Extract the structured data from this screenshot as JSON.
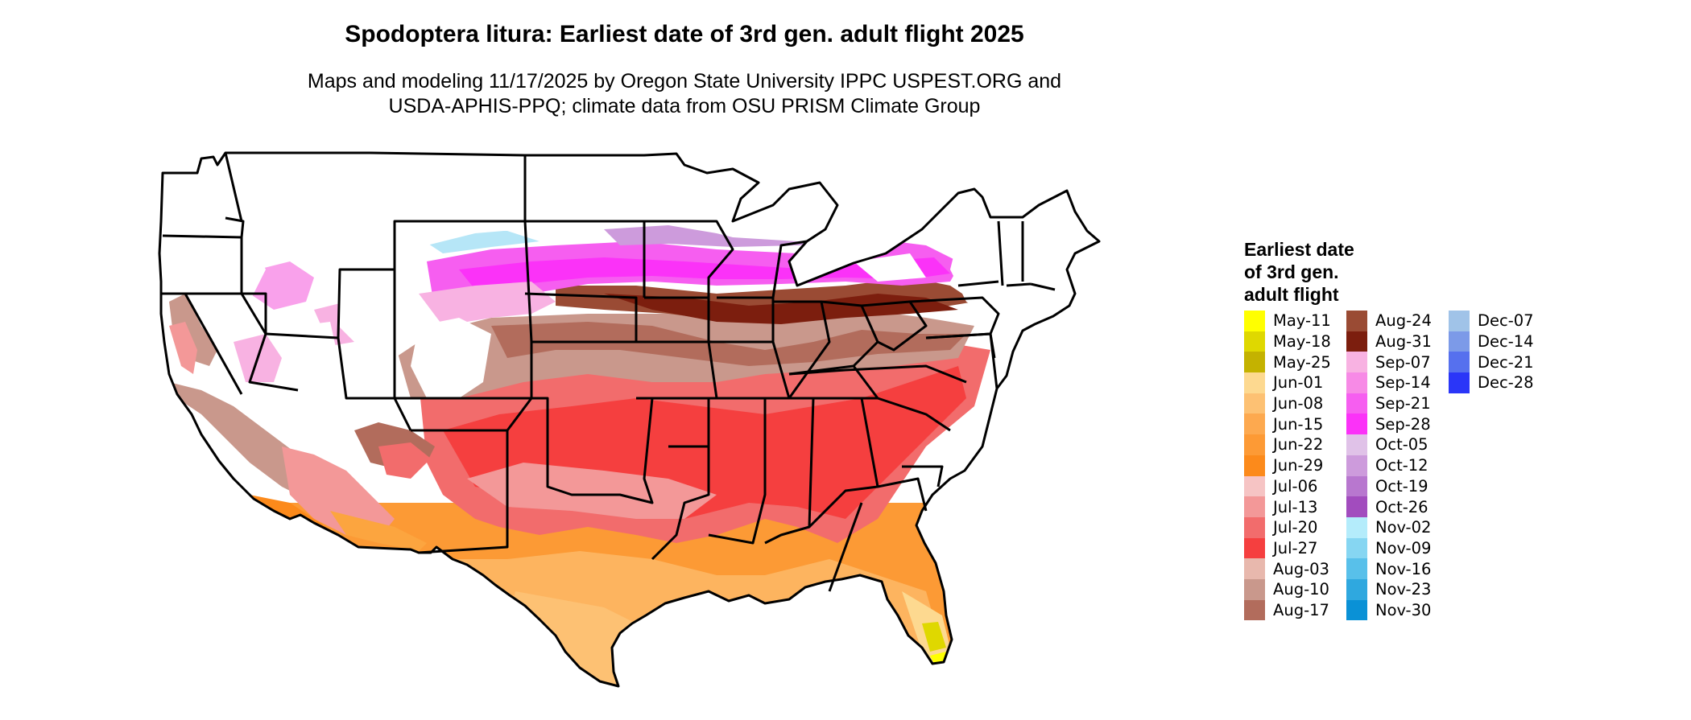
{
  "title": "Spodoptera litura: Earliest date of 3rd gen. adult flight 2025",
  "subtitle_line1": "Maps and modeling 11/17/2025 by Oregon State University IPPC USPEST.ORG and",
  "subtitle_line2": "USDA-APHIS-PPQ; climate data from OSU PRISM Climate Group",
  "legend": {
    "title_lines": [
      "Earliest date",
      "of 3rd gen.",
      "adult flight"
    ],
    "columns": [
      [
        {
          "label": "May-11",
          "color": "#ffff00"
        },
        {
          "label": "May-18",
          "color": "#dfd800"
        },
        {
          "label": "May-25",
          "color": "#c4b200"
        },
        {
          "label": "Jun-01",
          "color": "#fdd990"
        },
        {
          "label": "Jun-08",
          "color": "#fdc173"
        },
        {
          "label": "Jun-15",
          "color": "#fda94f"
        },
        {
          "label": "Jun-22",
          "color": "#fd9a35"
        },
        {
          "label": "Jun-29",
          "color": "#fc8a1b"
        },
        {
          "label": "Jul-06",
          "color": "#f6c4c4"
        },
        {
          "label": "Jul-13",
          "color": "#f39898"
        },
        {
          "label": "Jul-20",
          "color": "#f26c6c"
        },
        {
          "label": "Jul-27",
          "color": "#f53f3f"
        },
        {
          "label": "Aug-03",
          "color": "#e8b8ad"
        },
        {
          "label": "Aug-10",
          "color": "#c9988c"
        },
        {
          "label": "Aug-17",
          "color": "#b26c5c"
        }
      ],
      [
        {
          "label": "Aug-24",
          "color": "#9a4b34"
        },
        {
          "label": "Aug-31",
          "color": "#7c1e0e"
        },
        {
          "label": "Sep-07",
          "color": "#f8b2e2"
        },
        {
          "label": "Sep-14",
          "color": "#f78ae6"
        },
        {
          "label": "Sep-21",
          "color": "#f65ef0"
        },
        {
          "label": "Sep-28",
          "color": "#fb32f8"
        },
        {
          "label": "Oct-05",
          "color": "#e0c2e8"
        },
        {
          "label": "Oct-12",
          "color": "#cd9bdc"
        },
        {
          "label": "Oct-19",
          "color": "#b877cf"
        },
        {
          "label": "Oct-26",
          "color": "#a24cbe"
        },
        {
          "label": "Nov-02",
          "color": "#b4ecfb"
        },
        {
          "label": "Nov-09",
          "color": "#86d6f2"
        },
        {
          "label": "Nov-16",
          "color": "#58c0ea"
        },
        {
          "label": "Nov-23",
          "color": "#2fa8df"
        },
        {
          "label": "Nov-30",
          "color": "#0a91d6"
        }
      ],
      [
        {
          "label": "Dec-07",
          "color": "#a0c3e8"
        },
        {
          "label": "Dec-14",
          "color": "#7c9ae8"
        },
        {
          "label": "Dec-21",
          "color": "#5670ee"
        },
        {
          "label": "Dec-28",
          "color": "#2a36f8"
        }
      ]
    ]
  }
}
